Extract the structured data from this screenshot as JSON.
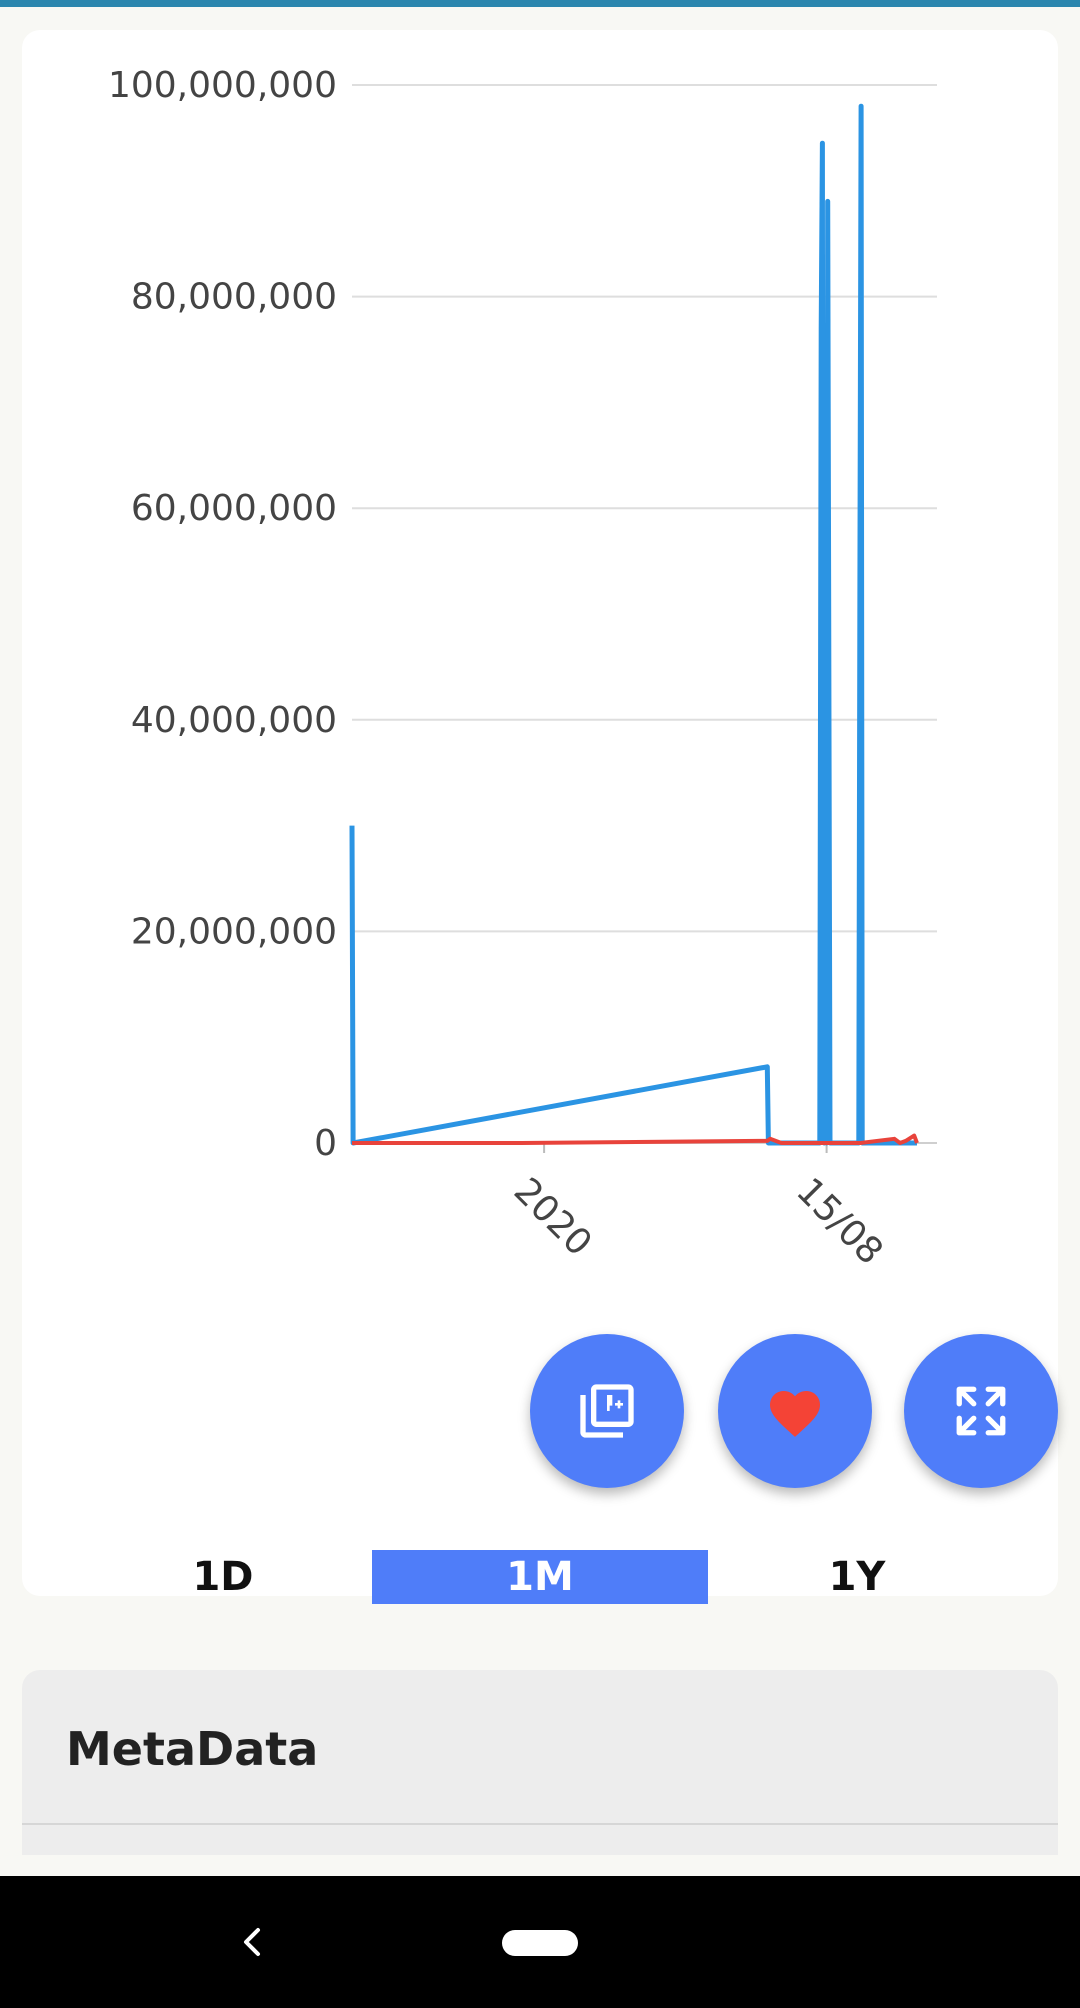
{
  "chart_data": {
    "type": "line",
    "ylim": [
      0,
      100000000
    ],
    "y_ticks": [
      "0",
      "20,000,000",
      "40,000,000",
      "60,000,000",
      "80,000,000",
      "100,000,000"
    ],
    "x_ticks": [
      "2020",
      "15/08"
    ],
    "grid": true,
    "series": [
      {
        "color": "#2b94e3",
        "points": [
          [
            0.0,
            30000000
          ],
          [
            0.002,
            0
          ],
          [
            0.735,
            7200000
          ],
          [
            0.737,
            0
          ],
          [
            0.828,
            0
          ],
          [
            0.829,
            36000000
          ],
          [
            0.8305,
            77000000
          ],
          [
            0.8325,
            94500000
          ],
          [
            0.834,
            2000000
          ],
          [
            0.836,
            0
          ],
          [
            0.838,
            37000000
          ],
          [
            0.84,
            0
          ],
          [
            0.842,
            89000000
          ],
          [
            0.846,
            0
          ],
          [
            0.848,
            0
          ],
          [
            0.86,
            0
          ],
          [
            0.87,
            0
          ],
          [
            0.88,
            0
          ],
          [
            0.89,
            0
          ],
          [
            0.897,
            0
          ],
          [
            0.899,
            53000000
          ],
          [
            0.901,
            98000000
          ],
          [
            0.903,
            0
          ],
          [
            0.92,
            0
          ],
          [
            1.0,
            0
          ]
        ]
      },
      {
        "color": "#e8433b",
        "points": [
          [
            0.0,
            0
          ],
          [
            0.3,
            0
          ],
          [
            0.72,
            200000
          ],
          [
            0.735,
            200000
          ],
          [
            0.74,
            400000
          ],
          [
            0.76,
            0
          ],
          [
            0.9,
            0
          ],
          [
            0.96,
            400000
          ],
          [
            0.97,
            0
          ],
          [
            0.98,
            200000
          ],
          [
            0.995,
            700000
          ],
          [
            1.0,
            0
          ]
        ]
      }
    ]
  },
  "actions": {
    "gallery": "gallery-nine-plus-icon",
    "favorite": "heart-icon",
    "fullscreen": "fullscreen-icon",
    "favorite_color": "#f44336",
    "accent": "#4f7df9"
  },
  "ranges": {
    "d1": "1D",
    "m1": "1M",
    "y1": "1Y",
    "selected": "1M"
  },
  "metadata": {
    "title": "MetaData"
  }
}
